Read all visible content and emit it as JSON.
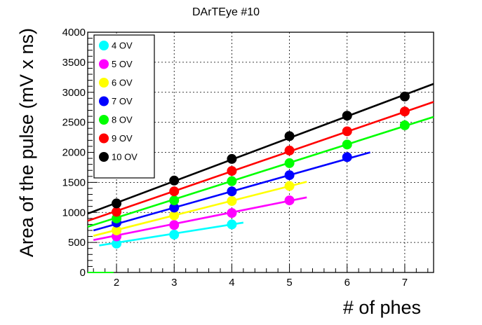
{
  "chart_data": {
    "type": "scatter",
    "title": "DArTEye #10",
    "xlabel": "# of phes",
    "ylabel": "Area of the pulse (mV x ns)",
    "xlim": [
      1.5,
      7.5
    ],
    "ylim": [
      0,
      4000
    ],
    "grid": true,
    "legend_position": "top-left",
    "x_ticks": [
      2,
      3,
      4,
      5,
      6,
      7
    ],
    "y_ticks": [
      0,
      500,
      1000,
      1500,
      2000,
      2500,
      3000,
      3500,
      4000
    ],
    "series": [
      {
        "name": "4 OV",
        "color": "#00ffff",
        "x": [
          2,
          3,
          4
        ],
        "y": [
          480,
          630,
          800
        ],
        "fit": {
          "x": [
            1.7,
            4.2
          ],
          "y": [
            450,
            830
          ]
        }
      },
      {
        "name": "5 OV",
        "color": "#ff00ff",
        "x": [
          2,
          3,
          4,
          5
        ],
        "y": [
          600,
          790,
          990,
          1200
        ],
        "fit": {
          "x": [
            1.6,
            5.3
          ],
          "y": [
            540,
            1250
          ]
        }
      },
      {
        "name": "6 OV",
        "color": "#ffff00",
        "x": [
          2,
          3,
          4,
          5
        ],
        "y": [
          700,
          950,
          1190,
          1440
        ],
        "fit": {
          "x": [
            1.6,
            5.3
          ],
          "y": [
            610,
            1510
          ]
        }
      },
      {
        "name": "7 OV",
        "color": "#0000ff",
        "x": [
          2,
          3,
          4,
          5,
          6
        ],
        "y": [
          830,
          1080,
          1350,
          1620,
          1920
        ],
        "fit": {
          "x": [
            1.6,
            6.4
          ],
          "y": [
            700,
            2000
          ]
        }
      },
      {
        "name": "8 OV",
        "color": "#00ff00",
        "x": [
          2,
          3,
          4,
          5,
          6,
          7
        ],
        "y": [
          900,
          1200,
          1520,
          1820,
          2130,
          2450
        ],
        "fit": {
          "x": [
            1.5,
            7.5
          ],
          "y": [
            760,
            2590
          ]
        }
      },
      {
        "name": "9 OV",
        "color": "#ff0000",
        "x": [
          2,
          3,
          4,
          5,
          6,
          7
        ],
        "y": [
          1010,
          1350,
          1690,
          2030,
          2350,
          2680
        ],
        "fit": {
          "x": [
            1.5,
            7.5
          ],
          "y": [
            860,
            2840
          ]
        }
      },
      {
        "name": "10 OV",
        "color": "#000000",
        "x": [
          2,
          3,
          4,
          5,
          6,
          7
        ],
        "y": [
          1150,
          1530,
          1890,
          2270,
          2610,
          2930
        ],
        "fit": {
          "x": [
            1.5,
            7.5
          ],
          "y": [
            980,
            3140
          ]
        }
      }
    ]
  }
}
